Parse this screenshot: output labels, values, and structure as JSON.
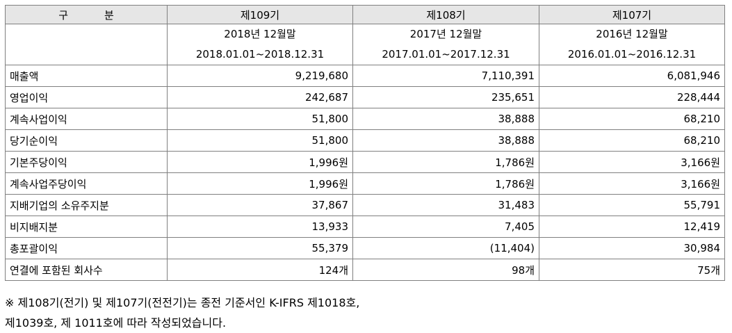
{
  "header": {
    "gubun_chars": [
      "구",
      "분"
    ],
    "periods": [
      {
        "label": "제109기",
        "date": "2018년 12월말",
        "range": "2018.01.01~2018.12.31"
      },
      {
        "label": "제108기",
        "date": "2017년 12월말",
        "range": "2017.01.01~2017.12.31"
      },
      {
        "label": "제107기",
        "date": "2016년 12월말",
        "range": "2016.01.01~2016.12.31"
      }
    ]
  },
  "rows": [
    {
      "label": "매출액",
      "values": [
        "9,219,680",
        "7,110,391",
        "6,081,946"
      ]
    },
    {
      "label": "영업이익",
      "values": [
        "242,687",
        "235,651",
        "228,444"
      ]
    },
    {
      "label": "계속사업이익",
      "values": [
        "51,800",
        "38,888",
        "68,210"
      ]
    },
    {
      "label": "당기순이익",
      "values": [
        "51,800",
        "38,888",
        "68,210"
      ]
    },
    {
      "label": "기본주당이익",
      "values": [
        "1,996원",
        "1,786원",
        "3,166원"
      ]
    },
    {
      "label": "계속사업주당이익",
      "values": [
        "1,996원",
        "1,786원",
        "3,166원"
      ]
    },
    {
      "label": "지배기업의 소유주지분",
      "values": [
        "37,867",
        "31,483",
        "55,791"
      ]
    },
    {
      "label": "비지배지분",
      "values": [
        "13,933",
        "7,405",
        "12,419"
      ]
    },
    {
      "label": "총포괄이익",
      "values": [
        "55,379",
        "(11,404)",
        "30,984"
      ]
    },
    {
      "label": "연결에 포함된 회사수",
      "values": [
        "124개",
        "98개",
        "75개"
      ]
    }
  ],
  "notes": [
    "※ 제108기(전기) 및 제107기(전전기)는 종전 기준서인 K-IFRS 제1018호,",
    "제1039호, 제 1011호에 따라 작성되었습니다."
  ]
}
